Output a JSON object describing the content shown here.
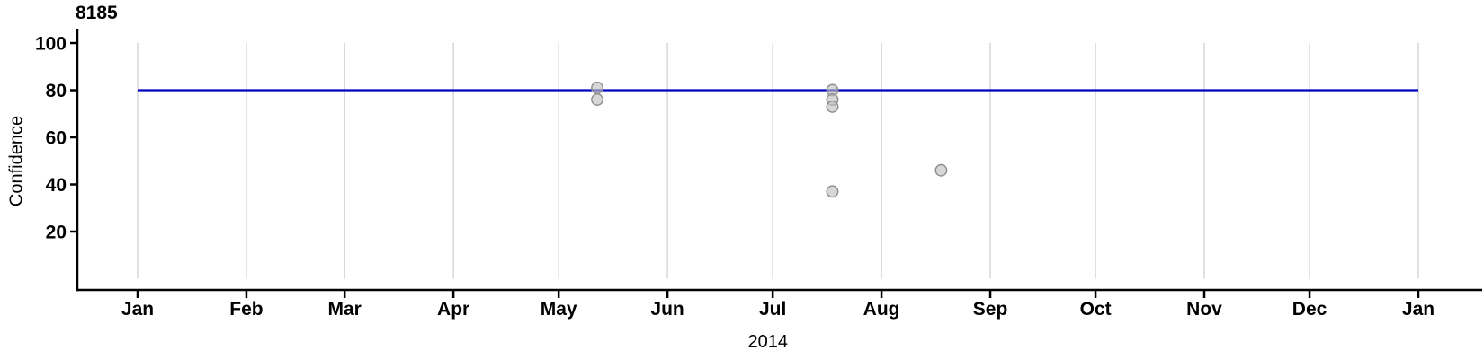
{
  "chart_data": {
    "type": "scatter",
    "title": "8185",
    "xlabel": "2014",
    "ylabel": "Confidence",
    "x_axis": {
      "unit": "date (2014 calendar year)",
      "tick_labels": [
        "Jan",
        "Feb",
        "Mar",
        "Apr",
        "May",
        "Jun",
        "Jul",
        "Aug",
        "Sep",
        "Oct",
        "Nov",
        "Dec",
        "Jan"
      ],
      "tick_day_of_year": [
        0,
        31,
        59,
        90,
        120,
        151,
        181,
        212,
        243,
        273,
        304,
        334,
        365
      ],
      "grid": true
    },
    "y_axis": {
      "ticks": [
        20,
        40,
        60,
        80,
        100
      ],
      "tick_labels": [
        "20",
        "40",
        "60",
        "80",
        "100"
      ],
      "range": [
        0,
        100
      ],
      "grid": false
    },
    "reference_line": {
      "value": 80,
      "span_days": [
        0,
        365
      ]
    },
    "points": [
      {
        "date_est": "2014-05-12",
        "day_of_year": 131,
        "confidence": 81
      },
      {
        "date_est": "2014-05-12",
        "day_of_year": 131,
        "confidence": 76
      },
      {
        "date_est": "2014-07-18",
        "day_of_year": 198,
        "confidence": 80
      },
      {
        "date_est": "2014-07-18",
        "day_of_year": 198,
        "confidence": 76
      },
      {
        "date_est": "2014-07-18",
        "day_of_year": 198,
        "confidence": 73
      },
      {
        "date_est": "2014-07-18",
        "day_of_year": 198,
        "confidence": 37
      },
      {
        "date_est": "2014-08-18",
        "day_of_year": 229,
        "confidence": 46
      }
    ],
    "colors": {
      "axis": "#000000",
      "gridline": "#d4d4d4",
      "reference_line": "#0000c0",
      "point_fill": "#bebebe",
      "point_stroke": "#8f8f8f",
      "background": "#ffffff"
    },
    "legend": null
  }
}
